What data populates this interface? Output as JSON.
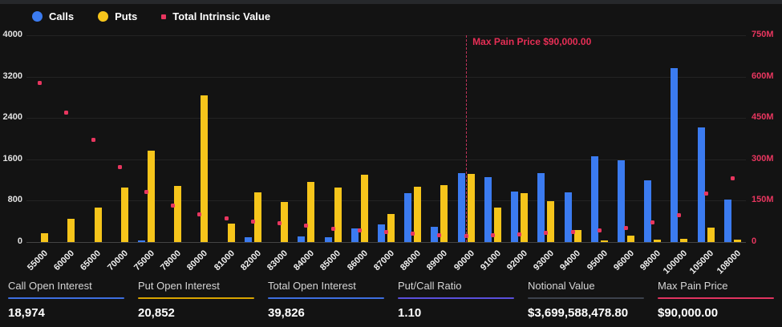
{
  "legend": {
    "calls_label": "Calls",
    "puts_label": "Puts",
    "intrinsic_label": "Total Intrinsic Value"
  },
  "colors": {
    "calls": "#3b7bf0",
    "puts": "#f6c51b",
    "intrinsic": "#e8365f",
    "max_pain_line": "#c0335a",
    "background": "#131313"
  },
  "chart_data": {
    "type": "bar",
    "title": "",
    "categories": [
      "55000",
      "60000",
      "65000",
      "70000",
      "75000",
      "78000",
      "80000",
      "81000",
      "82000",
      "83000",
      "84000",
      "85000",
      "86000",
      "87000",
      "88000",
      "89000",
      "90000",
      "91000",
      "92000",
      "93000",
      "94000",
      "95000",
      "96000",
      "98000",
      "100000",
      "105000",
      "108000"
    ],
    "series": [
      {
        "name": "Calls",
        "type": "bar",
        "axis": "left",
        "color": "#3b7bf0",
        "values": [
          0,
          0,
          0,
          0,
          25,
          0,
          0,
          0,
          90,
          0,
          110,
          95,
          270,
          345,
          945,
          300,
          1335,
          1260,
          970,
          1330,
          960,
          1665,
          1580,
          1200,
          3370,
          2220,
          820
        ]
      },
      {
        "name": "Puts",
        "type": "bar",
        "axis": "left",
        "color": "#f6c51b",
        "values": [
          170,
          450,
          665,
          1050,
          1770,
          1080,
          2830,
          355,
          965,
          770,
          1160,
          1060,
          1310,
          535,
          1075,
          1095,
          1325,
          665,
          950,
          790,
          230,
          35,
          125,
          45,
          65,
          275,
          45
        ]
      },
      {
        "name": "Total Intrinsic Value",
        "type": "scatter",
        "axis": "right",
        "color": "#e8365f",
        "values_millions": [
          576,
          470,
          371,
          272,
          182,
          131,
          100,
          87,
          75,
          68,
          59,
          48,
          42,
          35,
          30,
          26,
          22,
          25,
          28,
          32,
          37,
          43,
          50,
          72,
          96,
          175,
          230
        ]
      }
    ],
    "left_axis": {
      "min": 0,
      "max": 4000,
      "ticks": [
        0,
        800,
        1600,
        2400,
        3200,
        4000
      ]
    },
    "right_axis": {
      "min": 0,
      "max": 750,
      "ticks": [
        0,
        150,
        300,
        450,
        600,
        750
      ],
      "tick_labels": [
        "0",
        "150M",
        "300M",
        "450M",
        "600M",
        "750M"
      ]
    },
    "grid": true,
    "legend_position": "top-left",
    "max_pain": {
      "category": "90000",
      "label": "Max Pain Price $90,000.00"
    }
  },
  "stats": [
    {
      "label": "Call Open Interest",
      "value": "18,974",
      "accent": "#3e6fe0"
    },
    {
      "label": "Put Open Interest",
      "value": "20,852",
      "accent": "#d9a400"
    },
    {
      "label": "Total Open Interest",
      "value": "39,826",
      "accent": "#3e6fe0"
    },
    {
      "label": "Put/Call Ratio",
      "value": "1.10",
      "accent": "#5a4fdc"
    },
    {
      "label": "Notional Value",
      "value": "$3,699,588,478.80",
      "accent": "#3d424d"
    },
    {
      "label": "Max Pain Price",
      "value": "$90,000.00",
      "accent": "#e23460"
    }
  ]
}
